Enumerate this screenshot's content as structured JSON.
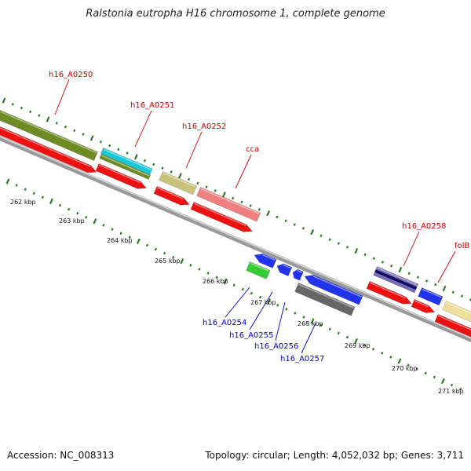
{
  "title": "Ralstonia eutropha H16 chromosome 1, complete genome",
  "footer": {
    "accession": "Accession: NC_008313",
    "info": "Topology: circular; Length: 4,052,032 bp; Genes: 3,711"
  },
  "colors": {
    "forward_label": "#cc0000",
    "reverse_label": "#0000cc",
    "tick": "#2a7a2a",
    "backbone": "#888888"
  },
  "scale": {
    "unit": "kbp",
    "ticks": [
      "262 kbp",
      "263 kbp",
      "264 kbp",
      "265 kbp",
      "266 kbp",
      "267 kbp",
      "268 kbp",
      "269 kbp",
      "270 kbp",
      "271 kbp"
    ]
  },
  "genes": [
    {
      "label": "h16_A0250",
      "strand": "forward"
    },
    {
      "label": "h16_A0251",
      "strand": "forward"
    },
    {
      "label": "h16_A0252",
      "strand": "forward"
    },
    {
      "label": "cca",
      "strand": "forward"
    },
    {
      "label": "h16_A0258",
      "strand": "forward"
    },
    {
      "label": "folB",
      "strand": "forward"
    },
    {
      "label": "h16_A0254",
      "strand": "reverse"
    },
    {
      "label": "h16_A0255",
      "strand": "reverse"
    },
    {
      "label": "h16_A0256",
      "strand": "reverse"
    },
    {
      "label": "h16_A0257",
      "strand": "reverse"
    }
  ]
}
